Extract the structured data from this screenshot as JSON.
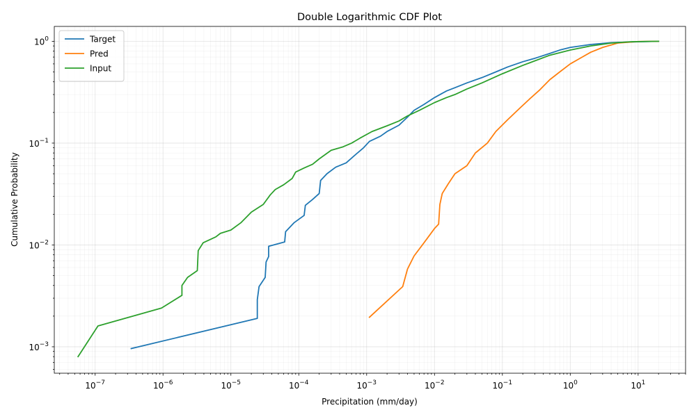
{
  "chart_data": {
    "type": "line",
    "title": "Double Logarithmic CDF Plot",
    "xlabel": "Precipitation (mm/day)",
    "ylabel": "Cumulative Probability",
    "xscale": "log",
    "yscale": "log",
    "xlim": [
      2.5e-08,
      50
    ],
    "ylim": [
      0.00055,
      1.4
    ],
    "grid": true,
    "legend": "top-left",
    "x_ticks": [
      {
        "value": 1e-07,
        "base": "10",
        "exp": "−7"
      },
      {
        "value": 1e-06,
        "base": "10",
        "exp": "−6"
      },
      {
        "value": 1e-05,
        "base": "10",
        "exp": "−5"
      },
      {
        "value": 0.0001,
        "base": "10",
        "exp": "−4"
      },
      {
        "value": 0.001,
        "base": "10",
        "exp": "−3"
      },
      {
        "value": 0.01,
        "base": "10",
        "exp": "−2"
      },
      {
        "value": 0.1,
        "base": "10",
        "exp": "−1"
      },
      {
        "value": 1,
        "base": "10",
        "exp": "0"
      },
      {
        "value": 10,
        "base": "10",
        "exp": "1"
      }
    ],
    "y_ticks": [
      {
        "value": 0.001,
        "base": "10",
        "exp": "−3"
      },
      {
        "value": 0.01,
        "base": "10",
        "exp": "−2"
      },
      {
        "value": 0.1,
        "base": "10",
        "exp": "−1"
      },
      {
        "value": 1,
        "base": "10",
        "exp": "0"
      }
    ],
    "series": [
      {
        "name": "Target",
        "color": "#1f77b4",
        "points": [
          [
            3.4e-07,
            0.00096
          ],
          [
            2.45e-05,
            0.0019
          ],
          [
            2.45e-05,
            0.0029
          ],
          [
            2.6e-05,
            0.0039
          ],
          [
            3.2e-05,
            0.0048
          ],
          [
            3.3e-05,
            0.0068
          ],
          [
            3.6e-05,
            0.0077
          ],
          [
            3.6e-05,
            0.0097
          ],
          [
            6.2e-05,
            0.0107
          ],
          [
            6.4e-05,
            0.0135
          ],
          [
            8.5e-05,
            0.0165
          ],
          [
            0.00012,
            0.0195
          ],
          [
            0.000125,
            0.0245
          ],
          [
            0.00016,
            0.028
          ],
          [
            0.0002,
            0.032
          ],
          [
            0.00021,
            0.043
          ],
          [
            0.00026,
            0.05
          ],
          [
            0.00035,
            0.058
          ],
          [
            0.0005,
            0.064
          ],
          [
            0.0007,
            0.078
          ],
          [
            0.0009,
            0.09
          ],
          [
            0.0011,
            0.104
          ],
          [
            0.0016,
            0.117
          ],
          [
            0.002,
            0.13
          ],
          [
            0.003,
            0.15
          ],
          [
            0.004,
            0.18
          ],
          [
            0.005,
            0.21
          ],
          [
            0.007,
            0.24
          ],
          [
            0.01,
            0.28
          ],
          [
            0.015,
            0.325
          ],
          [
            0.02,
            0.35
          ],
          [
            0.03,
            0.39
          ],
          [
            0.05,
            0.44
          ],
          [
            0.08,
            0.5
          ],
          [
            0.12,
            0.56
          ],
          [
            0.2,
            0.63
          ],
          [
            0.3,
            0.68
          ],
          [
            0.5,
            0.76
          ],
          [
            0.7,
            0.82
          ],
          [
            1.0,
            0.87
          ],
          [
            2.0,
            0.93
          ],
          [
            4.0,
            0.97
          ],
          [
            10,
            0.99
          ],
          [
            20,
            1.0
          ]
        ]
      },
      {
        "name": "Pred",
        "color": "#ff7f0e",
        "points": [
          [
            0.0011,
            0.00195
          ],
          [
            0.0034,
            0.0039
          ],
          [
            0.004,
            0.0058
          ],
          [
            0.005,
            0.0078
          ],
          [
            0.007,
            0.0105
          ],
          [
            0.01,
            0.0145
          ],
          [
            0.0115,
            0.016
          ],
          [
            0.012,
            0.025
          ],
          [
            0.013,
            0.032
          ],
          [
            0.016,
            0.04
          ],
          [
            0.02,
            0.05
          ],
          [
            0.03,
            0.06
          ],
          [
            0.04,
            0.08
          ],
          [
            0.06,
            0.1
          ],
          [
            0.08,
            0.13
          ],
          [
            0.12,
            0.17
          ],
          [
            0.18,
            0.22
          ],
          [
            0.25,
            0.27
          ],
          [
            0.35,
            0.33
          ],
          [
            0.5,
            0.42
          ],
          [
            0.7,
            0.5
          ],
          [
            1.0,
            0.6
          ],
          [
            1.5,
            0.7
          ],
          [
            2.0,
            0.78
          ],
          [
            3.0,
            0.87
          ],
          [
            5.0,
            0.96
          ],
          [
            10,
            0.995
          ],
          [
            20,
            1.0
          ]
        ]
      },
      {
        "name": "Input",
        "color": "#2ca02c",
        "points": [
          [
            5.6e-08,
            0.0008
          ],
          [
            1.1e-07,
            0.0016
          ],
          [
            9.5e-07,
            0.0024
          ],
          [
            1.9e-06,
            0.0032
          ],
          [
            1.9e-06,
            0.004
          ],
          [
            2.3e-06,
            0.0048
          ],
          [
            3.2e-06,
            0.0056
          ],
          [
            3.3e-06,
            0.0088
          ],
          [
            3.9e-06,
            0.0105
          ],
          [
            6e-06,
            0.012
          ],
          [
            7e-06,
            0.013
          ],
          [
            1e-05,
            0.014
          ],
          [
            1.4e-05,
            0.0165
          ],
          [
            2e-05,
            0.021
          ],
          [
            3e-05,
            0.025
          ],
          [
            3.8e-05,
            0.031
          ],
          [
            4.5e-05,
            0.035
          ],
          [
            6e-05,
            0.039
          ],
          [
            8e-05,
            0.045
          ],
          [
            9e-05,
            0.052
          ],
          [
            0.00012,
            0.057
          ],
          [
            0.00016,
            0.062
          ],
          [
            0.0002,
            0.07
          ],
          [
            0.0003,
            0.085
          ],
          [
            0.00045,
            0.092
          ],
          [
            0.0006,
            0.1
          ],
          [
            0.0008,
            0.112
          ],
          [
            0.0012,
            0.13
          ],
          [
            0.002,
            0.148
          ],
          [
            0.003,
            0.165
          ],
          [
            0.004,
            0.185
          ],
          [
            0.006,
            0.21
          ],
          [
            0.01,
            0.25
          ],
          [
            0.015,
            0.28
          ],
          [
            0.02,
            0.3
          ],
          [
            0.03,
            0.34
          ],
          [
            0.05,
            0.39
          ],
          [
            0.1,
            0.48
          ],
          [
            0.2,
            0.58
          ],
          [
            0.5,
            0.73
          ],
          [
            1.0,
            0.82
          ],
          [
            2.0,
            0.9
          ],
          [
            4.0,
            0.96
          ],
          [
            8.0,
            0.99
          ],
          [
            20,
            1.0
          ]
        ]
      }
    ]
  }
}
